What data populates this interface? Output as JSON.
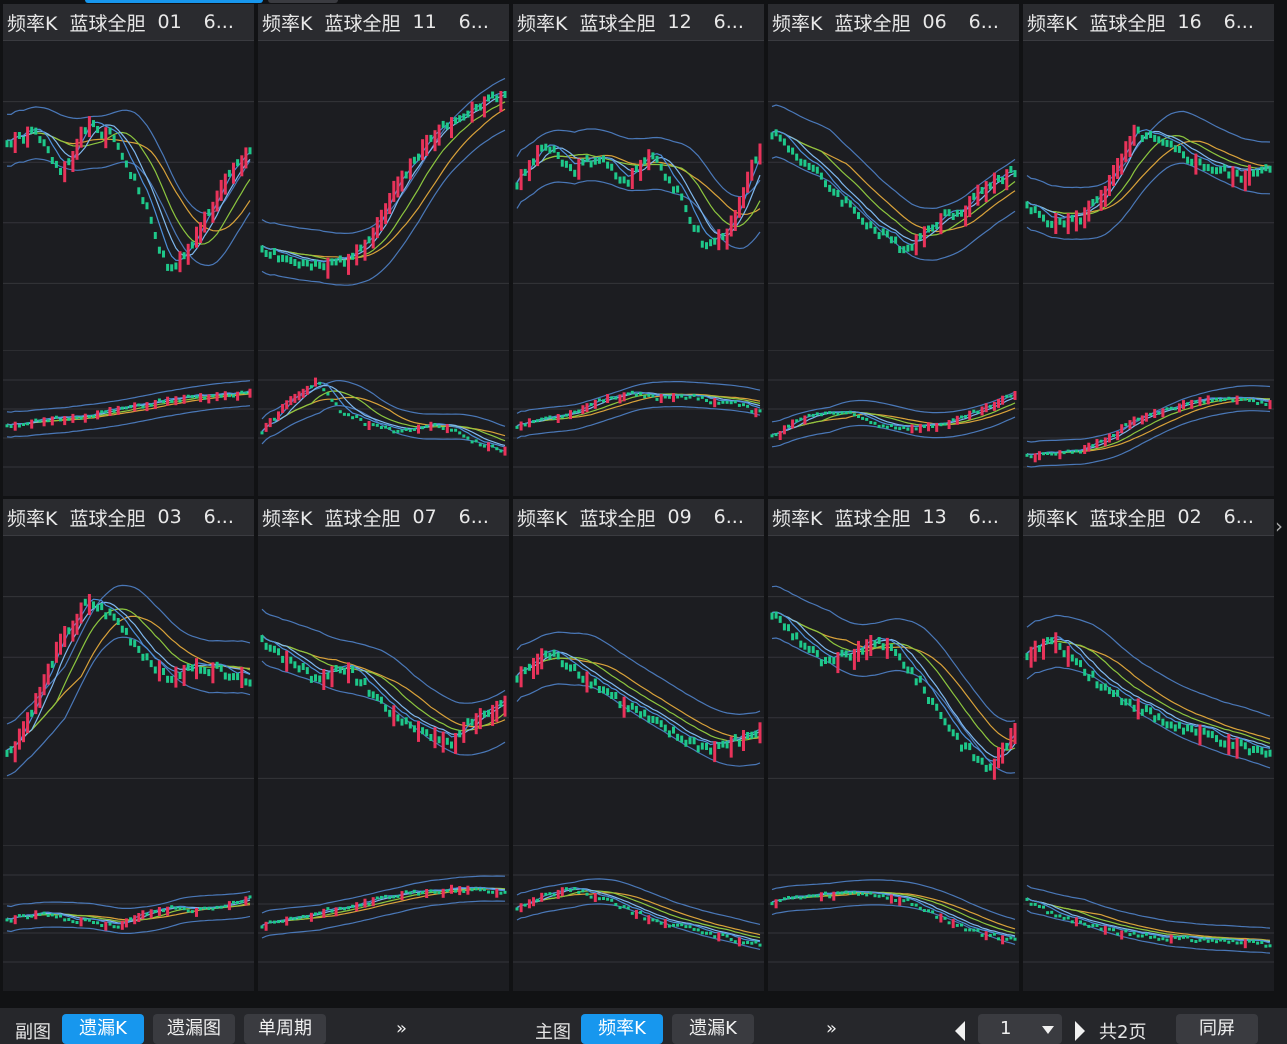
{
  "colors": {
    "up_candle": "#e8335a",
    "down_candle": "#1ec88a",
    "line_blue": "#4d8fd8",
    "line_lightblue": "#7fb8ee",
    "line_green": "#8cc63f",
    "line_orange": "#d9a23a",
    "band": "#4a78b8",
    "accent": "#1797ee"
  },
  "panels": [
    {
      "title": "频率K",
      "name": "蓝球全胆",
      "number": "01",
      "trunc": "6...",
      "trend": [
        0.7,
        0.75,
        0.6,
        0.78,
        0.72,
        0.5,
        0.2,
        0.35,
        0.55,
        0.68
      ],
      "sub_trend": [
        0.5,
        0.52,
        0.55,
        0.58,
        0.62,
        0.66,
        0.7,
        0.72,
        0.74,
        0.76
      ]
    },
    {
      "title": "频率K",
      "name": "蓝球全胆",
      "number": "11",
      "trunc": "6...",
      "trend": [
        0.3,
        0.25,
        0.22,
        0.25,
        0.35,
        0.55,
        0.7,
        0.8,
        0.85,
        0.9
      ],
      "sub_trend": [
        0.45,
        0.7,
        0.85,
        0.6,
        0.5,
        0.45,
        0.5,
        0.48,
        0.35,
        0.3
      ]
    },
    {
      "title": "频率K",
      "name": "蓝球全胆",
      "number": "12",
      "trunc": "6...",
      "trend": [
        0.55,
        0.7,
        0.6,
        0.65,
        0.55,
        0.68,
        0.5,
        0.3,
        0.4,
        0.7
      ],
      "sub_trend": [
        0.5,
        0.55,
        0.6,
        0.7,
        0.75,
        0.72,
        0.74,
        0.7,
        0.68,
        0.6
      ]
    },
    {
      "title": "频率K",
      "name": "蓝球全胆",
      "number": "06",
      "trunc": "6...",
      "trend": [
        0.75,
        0.65,
        0.55,
        0.45,
        0.35,
        0.3,
        0.4,
        0.45,
        0.55,
        0.6
      ],
      "sub_trend": [
        0.4,
        0.55,
        0.6,
        0.58,
        0.5,
        0.48,
        0.5,
        0.55,
        0.65,
        0.75
      ]
    },
    {
      "title": "频率K",
      "name": "蓝球全胆",
      "number": "16",
      "trunc": "6...",
      "trend": [
        0.45,
        0.4,
        0.42,
        0.55,
        0.75,
        0.7,
        0.65,
        0.6,
        0.58,
        0.62
      ],
      "sub_trend": [
        0.25,
        0.28,
        0.3,
        0.4,
        0.55,
        0.62,
        0.68,
        0.72,
        0.7,
        0.68
      ]
    },
    {
      "title": "频率K",
      "name": "蓝球全胆",
      "number": "03",
      "trunc": "6...",
      "trend": [
        0.25,
        0.45,
        0.7,
        0.85,
        0.78,
        0.65,
        0.55,
        0.6,
        0.58,
        0.55
      ],
      "sub_trend": [
        0.5,
        0.55,
        0.52,
        0.48,
        0.45,
        0.55,
        0.6,
        0.58,
        0.62,
        0.68
      ]
    },
    {
      "title": "频率K",
      "name": "蓝球全胆",
      "number": "07",
      "trunc": "6...",
      "trend": [
        0.7,
        0.62,
        0.55,
        0.6,
        0.5,
        0.4,
        0.35,
        0.3,
        0.42,
        0.45
      ],
      "sub_trend": [
        0.45,
        0.5,
        0.55,
        0.6,
        0.65,
        0.7,
        0.72,
        0.75,
        0.74,
        0.72
      ]
    },
    {
      "title": "频率K",
      "name": "蓝球全胆",
      "number": "09",
      "trunc": "6...",
      "trend": [
        0.55,
        0.65,
        0.6,
        0.52,
        0.45,
        0.38,
        0.32,
        0.28,
        0.3,
        0.35
      ],
      "sub_trend": [
        0.6,
        0.7,
        0.75,
        0.68,
        0.6,
        0.5,
        0.45,
        0.4,
        0.35,
        0.3
      ]
    },
    {
      "title": "频率K",
      "name": "蓝球全胆",
      "number": "13",
      "trunc": "6...",
      "trend": [
        0.8,
        0.7,
        0.6,
        0.65,
        0.7,
        0.6,
        0.45,
        0.3,
        0.2,
        0.35
      ],
      "sub_trend": [
        0.65,
        0.68,
        0.7,
        0.72,
        0.7,
        0.65,
        0.55,
        0.45,
        0.38,
        0.35
      ]
    },
    {
      "title": "频率K",
      "name": "蓝球全胆",
      "number": "02",
      "trunc": "6...",
      "trend": [
        0.65,
        0.7,
        0.6,
        0.5,
        0.45,
        0.38,
        0.35,
        0.32,
        0.28,
        0.25
      ],
      "sub_trend": [
        0.65,
        0.55,
        0.48,
        0.42,
        0.38,
        0.36,
        0.35,
        0.34,
        0.32,
        0.3
      ]
    }
  ],
  "toolbar": {
    "sub_label": "副图",
    "sub_buttons": [
      "遗漏K",
      "遗漏图",
      "单周期"
    ],
    "sub_active": "遗漏K",
    "more1": "»",
    "main_label": "主图",
    "main_buttons": [
      "频率K",
      "遗漏K"
    ],
    "main_active": "频率K",
    "more2": "»",
    "page_value": "1",
    "page_total": "共2页",
    "same_screen": "同屏"
  }
}
